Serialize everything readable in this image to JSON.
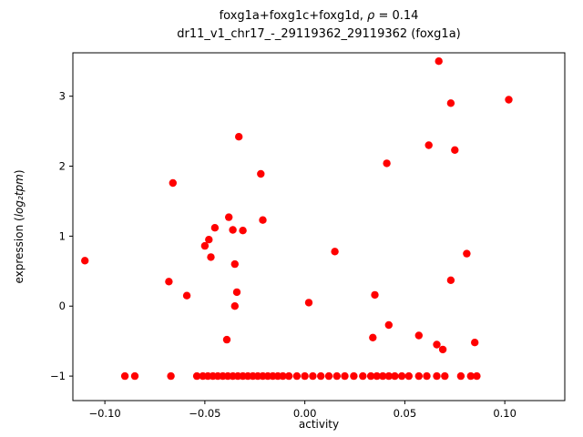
{
  "title": {
    "line1_prefix": "foxg1a+foxg1c+foxg1d, ",
    "line1_rho": "ρ",
    "line1_suffix": " = 0.14",
    "line2": "dr11_v1_chr17_-_29119362_29119362 (foxg1a)"
  },
  "chart_data": {
    "type": "scatter",
    "title": "foxg1a+foxg1c+foxg1d, ρ = 0.14",
    "subtitle": "dr11_v1_chr17_-_29119362_29119362 (foxg1a)",
    "xlabel": "activity",
    "ylabel": "expression (log₂tpm)",
    "ylabel_prefix": "expression (",
    "ylabel_math": "log₂tpm",
    "ylabel_suffix": ")",
    "marker_color": "#ff0000",
    "marker_radius": 4.2,
    "grid": false,
    "legend": false,
    "xlim": [
      -0.116,
      0.13
    ],
    "ylim": [
      -1.35,
      3.62
    ],
    "x_ticks": [
      -0.1,
      -0.05,
      0.0,
      0.05,
      0.1
    ],
    "x_tick_labels": [
      "−0.10",
      "−0.05",
      "0.00",
      "0.05",
      "0.10"
    ],
    "y_ticks": [
      -1,
      0,
      1,
      2,
      3
    ],
    "y_tick_labels": [
      "−1",
      "0",
      "1",
      "2",
      "3"
    ],
    "points": [
      [
        0.067,
        3.5
      ],
      [
        0.102,
        2.95
      ],
      [
        0.073,
        2.9
      ],
      [
        -0.033,
        2.42
      ],
      [
        0.062,
        2.3
      ],
      [
        0.075,
        2.23
      ],
      [
        0.041,
        2.04
      ],
      [
        -0.022,
        1.89
      ],
      [
        -0.066,
        1.76
      ],
      [
        -0.038,
        1.27
      ],
      [
        -0.021,
        1.23
      ],
      [
        -0.045,
        1.12
      ],
      [
        -0.036,
        1.09
      ],
      [
        -0.031,
        1.08
      ],
      [
        -0.048,
        0.95
      ],
      [
        -0.05,
        0.86
      ],
      [
        0.015,
        0.78
      ],
      [
        0.081,
        0.75
      ],
      [
        -0.047,
        0.7
      ],
      [
        -0.11,
        0.65
      ],
      [
        -0.035,
        0.6
      ],
      [
        0.073,
        0.37
      ],
      [
        -0.068,
        0.35
      ],
      [
        -0.034,
        0.2
      ],
      [
        0.035,
        0.16
      ],
      [
        -0.059,
        0.15
      ],
      [
        0.002,
        0.05
      ],
      [
        -0.035,
        0.0
      ],
      [
        0.042,
        -0.27
      ],
      [
        0.057,
        -0.42
      ],
      [
        0.034,
        -0.45
      ],
      [
        -0.039,
        -0.48
      ],
      [
        0.085,
        -0.52
      ],
      [
        0.066,
        -0.55
      ],
      [
        0.069,
        -0.62
      ],
      [
        -0.09,
        -1
      ],
      [
        -0.085,
        -1
      ],
      [
        -0.067,
        -1
      ],
      [
        -0.054,
        -1
      ],
      [
        -0.051,
        -1
      ],
      [
        -0.0485,
        -1
      ],
      [
        -0.046,
        -1
      ],
      [
        -0.0435,
        -1
      ],
      [
        -0.041,
        -1
      ],
      [
        -0.0385,
        -1
      ],
      [
        -0.036,
        -1
      ],
      [
        -0.0335,
        -1
      ],
      [
        -0.031,
        -1
      ],
      [
        -0.0285,
        -1
      ],
      [
        -0.026,
        -1
      ],
      [
        -0.0235,
        -1
      ],
      [
        -0.021,
        -1
      ],
      [
        -0.0185,
        -1
      ],
      [
        -0.016,
        -1
      ],
      [
        -0.0135,
        -1
      ],
      [
        -0.011,
        -1
      ],
      [
        -0.008,
        -1
      ],
      [
        -0.004,
        -1
      ],
      [
        0.0,
        -1
      ],
      [
        0.004,
        -1
      ],
      [
        0.008,
        -1
      ],
      [
        0.012,
        -1
      ],
      [
        0.016,
        -1
      ],
      [
        0.02,
        -1
      ],
      [
        0.0245,
        -1
      ],
      [
        0.029,
        -1
      ],
      [
        0.033,
        -1
      ],
      [
        0.036,
        -1
      ],
      [
        0.039,
        -1
      ],
      [
        0.042,
        -1
      ],
      [
        0.045,
        -1
      ],
      [
        0.0485,
        -1
      ],
      [
        0.052,
        -1
      ],
      [
        0.057,
        -1
      ],
      [
        0.061,
        -1
      ],
      [
        0.066,
        -1
      ],
      [
        0.07,
        -1
      ],
      [
        0.078,
        -1
      ],
      [
        0.083,
        -1
      ],
      [
        0.086,
        -1
      ]
    ]
  }
}
